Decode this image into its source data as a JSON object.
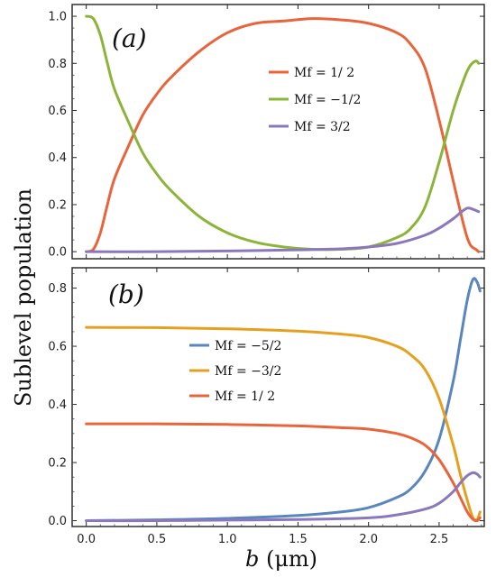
{
  "ylabel": "Sublevel population",
  "xlabel": "b (μm)",
  "colors": {
    "orange": "#E8643A",
    "green": "#8DB43A",
    "purple": "#8B78BC",
    "blue": "#5A86BE",
    "gold": "#E6A020"
  },
  "chart_data": [
    {
      "type": "line",
      "panel_label": "(a)",
      "xlim": [
        -0.1,
        2.82
      ],
      "ylim": [
        -0.03,
        1.05
      ],
      "x_ticks": [
        0.0,
        0.5,
        1.0,
        1.5,
        2.0,
        2.5
      ],
      "x_tick_labels": [
        "",
        "",
        "",
        "",
        "",
        ""
      ],
      "y_ticks": [
        0.0,
        0.2,
        0.4,
        0.6,
        0.8,
        1.0
      ],
      "y_tick_labels": [
        "0.0",
        "0.2",
        "0.4",
        "0.6",
        "0.8",
        "1.0"
      ],
      "legend": [
        {
          "label": "Mf = 1/ 2",
          "color": "#E8643A"
        },
        {
          "label": "Mf = −1/2",
          "color": "#8DB43A"
        },
        {
          "label": "Mf = 3/2",
          "color": "#8B78BC"
        }
      ],
      "series": [
        {
          "name": "Mf = 1/ 2",
          "color": "#E8643A",
          "x": [
            0.0,
            0.05,
            0.1,
            0.15,
            0.2,
            0.3,
            0.4,
            0.5,
            0.6,
            0.8,
            1.0,
            1.2,
            1.4,
            1.6,
            1.8,
            2.0,
            2.2,
            2.3,
            2.4,
            2.5,
            2.6,
            2.68,
            2.72,
            2.76,
            2.78
          ],
          "y": [
            0.0,
            0.01,
            0.08,
            0.2,
            0.31,
            0.45,
            0.58,
            0.67,
            0.74,
            0.85,
            0.93,
            0.97,
            0.98,
            0.99,
            0.985,
            0.97,
            0.93,
            0.88,
            0.78,
            0.56,
            0.3,
            0.1,
            0.03,
            0.01,
            0.0
          ]
        },
        {
          "name": "Mf = −1/2",
          "color": "#8DB43A",
          "x": [
            0.0,
            0.05,
            0.1,
            0.15,
            0.2,
            0.3,
            0.4,
            0.5,
            0.6,
            0.8,
            1.0,
            1.2,
            1.4,
            1.6,
            1.8,
            2.0,
            2.2,
            2.3,
            2.4,
            2.5,
            2.6,
            2.68,
            2.72,
            2.76,
            2.78
          ],
          "y": [
            1.0,
            0.99,
            0.92,
            0.8,
            0.69,
            0.55,
            0.42,
            0.33,
            0.26,
            0.15,
            0.08,
            0.04,
            0.02,
            0.01,
            0.01,
            0.02,
            0.06,
            0.1,
            0.19,
            0.38,
            0.6,
            0.74,
            0.79,
            0.81,
            0.8
          ]
        },
        {
          "name": "Mf = 3/2",
          "color": "#8B78BC",
          "x": [
            0.0,
            0.5,
            1.0,
            1.5,
            1.8,
            2.0,
            2.2,
            2.4,
            2.5,
            2.6,
            2.65,
            2.7,
            2.74,
            2.78
          ],
          "y": [
            0.0,
            0.0,
            0.003,
            0.008,
            0.012,
            0.02,
            0.035,
            0.07,
            0.1,
            0.14,
            0.165,
            0.185,
            0.18,
            0.17
          ]
        }
      ]
    },
    {
      "type": "line",
      "panel_label": "(b)",
      "xlim": [
        -0.1,
        2.82
      ],
      "ylim": [
        -0.02,
        0.87
      ],
      "x_ticks": [
        0.0,
        0.5,
        1.0,
        1.5,
        2.0,
        2.5
      ],
      "x_tick_labels": [
        "0.0",
        "0.5",
        "1.0",
        "1.5",
        "2.0",
        "2.5"
      ],
      "y_ticks": [
        0.0,
        0.2,
        0.4,
        0.6,
        0.8
      ],
      "y_tick_labels": [
        "0.0",
        "0.2",
        "0.4",
        "0.6",
        "0.8"
      ],
      "legend": [
        {
          "label": "Mf = −5/2",
          "color": "#5A86BE"
        },
        {
          "label": "Mf = −3/2",
          "color": "#E6A020"
        },
        {
          "label": "Mf = 1/ 2",
          "color": "#E8643A"
        }
      ],
      "series": [
        {
          "name": "Mf = −5/2",
          "color": "#5A86BE",
          "x": [
            0.0,
            0.5,
            1.0,
            1.5,
            1.8,
            2.0,
            2.2,
            2.3,
            2.4,
            2.5,
            2.6,
            2.65,
            2.7,
            2.74,
            2.77,
            2.79
          ],
          "y": [
            0.0,
            0.003,
            0.008,
            0.018,
            0.03,
            0.045,
            0.08,
            0.11,
            0.17,
            0.28,
            0.48,
            0.62,
            0.76,
            0.83,
            0.82,
            0.79
          ]
        },
        {
          "name": "Mf = −3/2",
          "color": "#E6A020",
          "x": [
            0.0,
            0.5,
            1.0,
            1.5,
            1.8,
            2.0,
            2.2,
            2.3,
            2.4,
            2.5,
            2.6,
            2.65,
            2.7,
            2.74,
            2.77,
            2.79
          ],
          "y": [
            0.665,
            0.664,
            0.66,
            0.652,
            0.642,
            0.63,
            0.6,
            0.57,
            0.52,
            0.42,
            0.26,
            0.16,
            0.07,
            0.01,
            0.005,
            0.03
          ]
        },
        {
          "name": "Mf = 1/ 2",
          "color": "#E8643A",
          "x": [
            0.0,
            0.5,
            1.0,
            1.5,
            1.8,
            2.0,
            2.2,
            2.3,
            2.4,
            2.5,
            2.6,
            2.65,
            2.7,
            2.74,
            2.77,
            2.79
          ],
          "y": [
            0.333,
            0.333,
            0.331,
            0.326,
            0.32,
            0.315,
            0.3,
            0.285,
            0.26,
            0.21,
            0.13,
            0.08,
            0.03,
            0.005,
            0.0,
            0.01
          ]
        },
        {
          "name": "",
          "color": "#8B78BC",
          "x": [
            0.0,
            0.5,
            1.0,
            1.5,
            2.0,
            2.2,
            2.4,
            2.5,
            2.6,
            2.65,
            2.7,
            2.74,
            2.77,
            2.79
          ],
          "y": [
            0.0,
            0.0,
            0.002,
            0.004,
            0.01,
            0.02,
            0.04,
            0.06,
            0.1,
            0.13,
            0.155,
            0.165,
            0.16,
            0.15
          ]
        }
      ]
    }
  ]
}
